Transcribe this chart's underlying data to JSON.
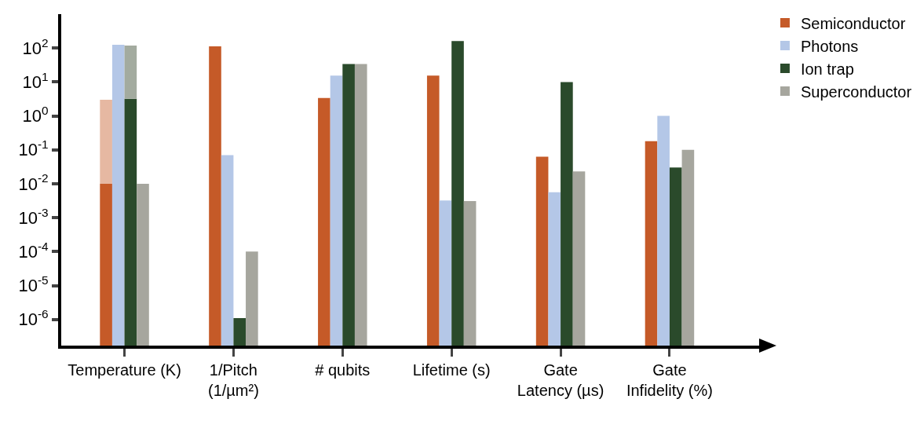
{
  "chart_data": {
    "type": "bar",
    "categories": [
      "Temperature (K)",
      "1/Pitch\n(1/µm²)",
      "# qubits",
      "Lifetime (s)",
      "Gate\nLatency (µs)",
      "Gate\nInfidelity (%)"
    ],
    "series": [
      {
        "name": "Semiconductor",
        "color": "#c55a28",
        "values": [
          0.01,
          112,
          3.4,
          15.5,
          0.063,
          0.18
        ]
      },
      {
        "color": "#e6b8a2",
        "base": [
          0.01,
          null,
          null,
          null,
          null,
          null
        ],
        "values": [
          2.99,
          null,
          null,
          null,
          null,
          null
        ]
      },
      {
        "name": "Photons",
        "color": "#b4c7e7",
        "values": [
          125,
          0.07,
          15.5,
          0.0032,
          0.0056,
          1.0
        ]
      },
      {
        "name": "Ion trap",
        "color": "#2a4a2b",
        "values": [
          3.2,
          1.1e-06,
          34,
          162,
          10,
          0.03
        ]
      },
      {
        "color": "#a3ab9f",
        "base": [
          3.2,
          null,
          null,
          null,
          null,
          null
        ],
        "values": [
          115,
          null,
          null,
          null,
          null,
          null
        ]
      },
      {
        "name": "Superconductor",
        "color": "#a6a69e",
        "values": [
          0.01,
          0.0001,
          34,
          0.0031,
          0.023,
          0.1
        ]
      }
    ],
    "log": true,
    "ylim": [
      1.7e-07,
      1000
    ],
    "yticks": [
      {
        "value": 1e-06,
        "label": "10$^{-6}$"
      },
      {
        "value": 1e-05,
        "label": "10$^{-5}$"
      },
      {
        "value": 0.0001,
        "label": "10$^{-4}$"
      },
      {
        "value": 0.001,
        "label": "10$^{-3}$"
      },
      {
        "value": 0.01,
        "label": "10$^{-2}$"
      },
      {
        "value": 0.1,
        "label": "10$^{-1}$"
      },
      {
        "value": 1,
        "label": "10$^{0}$"
      },
      {
        "value": 10,
        "label": "10$^{1}$"
      },
      {
        "value": 100,
        "label": "10$^{2}$"
      }
    ],
    "grid": false,
    "legend": "top right"
  }
}
